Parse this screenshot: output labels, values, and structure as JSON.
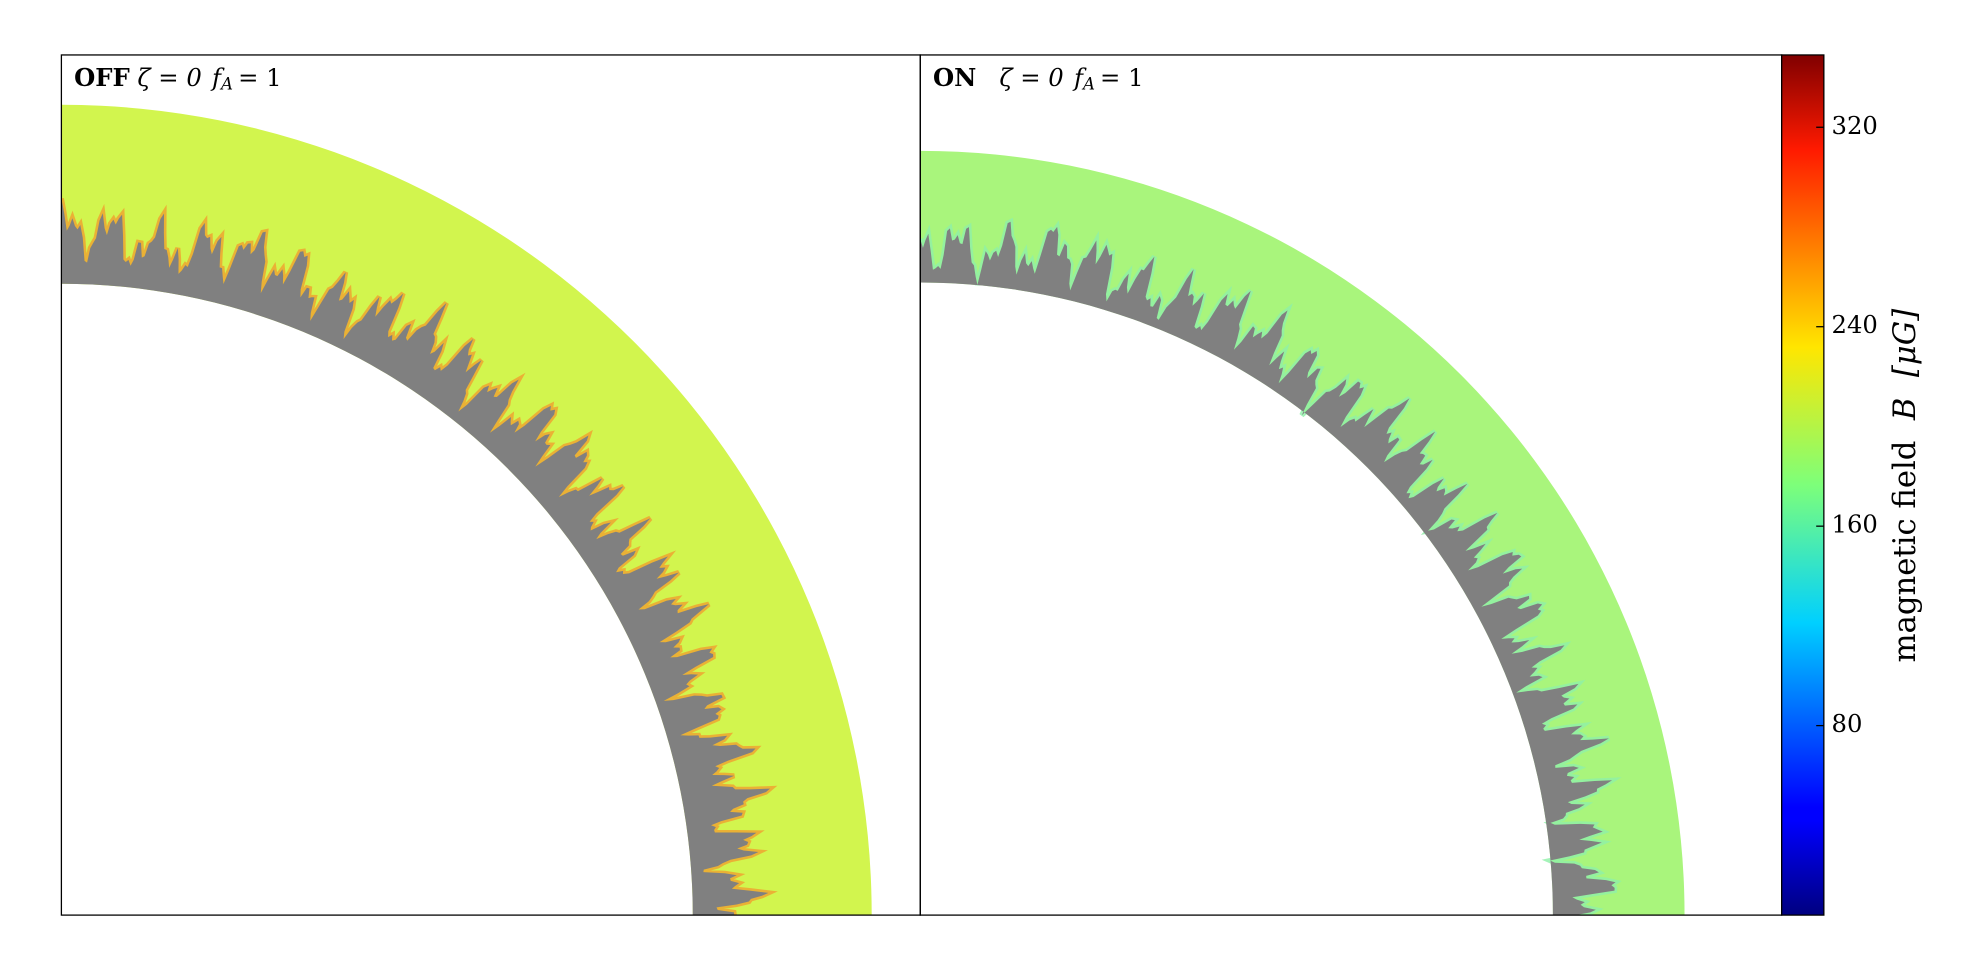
{
  "chart_data": {
    "type": "image",
    "panels": [
      {
        "label": "OFF",
        "zeta": "ζ = 0",
        "f": "f",
        "sub": "A",
        "rest": "= 1",
        "color": "#d2f54e",
        "edge_color": "#f0a030",
        "gap_color": "#808080"
      },
      {
        "label": "ON",
        "zeta": "ζ = 0",
        "f": "f",
        "sub": "A",
        "rest": "= 1",
        "color": "#a9f57c",
        "edge_color": "#8ef0a8",
        "gap_color": "#808080"
      }
    ],
    "colorbar": {
      "label": "magnetic field",
      "symbol": "B",
      "unit": "[μG]",
      "clim": [
        4,
        349
      ],
      "ticks": [
        80,
        160,
        240,
        320
      ],
      "colormap": "jet"
    }
  }
}
